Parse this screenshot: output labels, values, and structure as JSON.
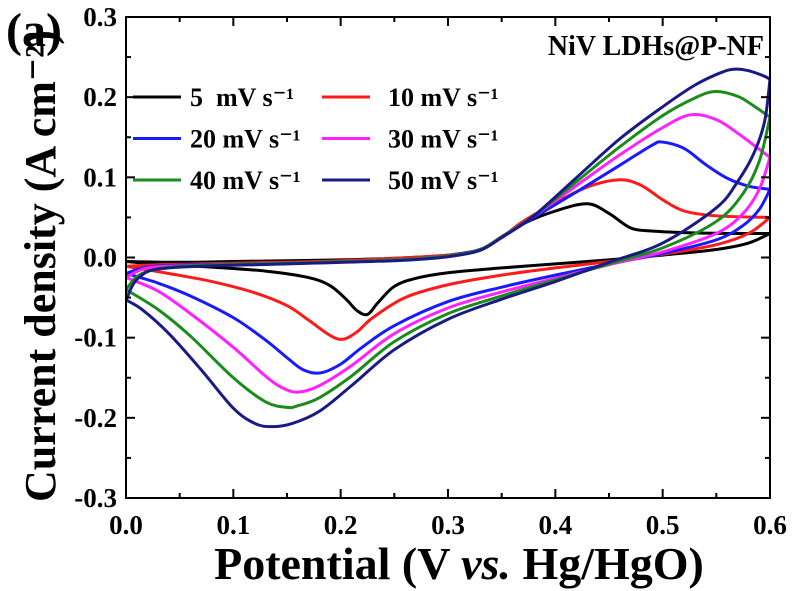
{
  "chart_data": {
    "type": "line",
    "panel_label": "(a)",
    "annotation": "NiV LDHs@P-NF",
    "xlabel": "Potential (V vs. Hg/HgO)",
    "ylabel": "Current density (A cm⁻²)",
    "xlim": [
      0,
      0.6
    ],
    "ylim": [
      -0.3,
      0.3
    ],
    "xtick_labels": [
      "0.0",
      "0.1",
      "0.2",
      "0.3",
      "0.4",
      "0.5",
      "0.6"
    ],
    "ytick_labels": [
      "-0.3",
      "-0.2",
      "-0.1",
      "0.0",
      "0.1",
      "0.2",
      "0.3"
    ],
    "grid": false,
    "legend_position": "top-left",
    "series": [
      {
        "name": "5  mV s⁻¹",
        "color": "#000000",
        "x": [
          0.0,
          0.05,
          0.1,
          0.15,
          0.2,
          0.25,
          0.3,
          0.33,
          0.35,
          0.37,
          0.4,
          0.43,
          0.45,
          0.47,
          0.49,
          0.52,
          0.56,
          0.6,
          0.58,
          0.55,
          0.5,
          0.45,
          0.4,
          0.35,
          0.3,
          0.27,
          0.25,
          0.235,
          0.225,
          0.215,
          0.205,
          0.19,
          0.17,
          0.13,
          0.08,
          0.03,
          0.0
        ],
        "y": [
          -0.005,
          -0.006,
          -0.005,
          -0.004,
          -0.003,
          -0.001,
          0.003,
          0.01,
          0.025,
          0.042,
          0.058,
          0.067,
          0.055,
          0.037,
          0.033,
          0.031,
          0.03,
          0.03,
          0.018,
          0.01,
          0.003,
          -0.003,
          -0.008,
          -0.013,
          -0.019,
          -0.026,
          -0.036,
          -0.056,
          -0.071,
          -0.066,
          -0.052,
          -0.035,
          -0.025,
          -0.017,
          -0.012,
          -0.008,
          -0.005
        ]
      },
      {
        "name": "10 mV s⁻¹",
        "color": "#ff1a1a",
        "x": [
          0.0,
          0.03,
          0.1,
          0.2,
          0.3,
          0.33,
          0.35,
          0.37,
          0.4,
          0.43,
          0.46,
          0.48,
          0.5,
          0.52,
          0.55,
          0.6,
          0.58,
          0.55,
          0.5,
          0.45,
          0.4,
          0.35,
          0.3,
          0.26,
          0.23,
          0.215,
          0.202,
          0.19,
          0.17,
          0.15,
          0.12,
          0.08,
          0.04,
          0.0
        ],
        "y": [
          -0.011,
          -0.009,
          -0.007,
          -0.004,
          0.003,
          0.01,
          0.025,
          0.045,
          0.068,
          0.088,
          0.097,
          0.09,
          0.072,
          0.058,
          0.052,
          0.05,
          0.03,
          0.016,
          0.004,
          -0.005,
          -0.013,
          -0.022,
          -0.034,
          -0.05,
          -0.075,
          -0.093,
          -0.102,
          -0.097,
          -0.078,
          -0.06,
          -0.044,
          -0.03,
          -0.02,
          -0.011
        ]
      },
      {
        "name": "20 mV s⁻¹",
        "color": "#1a1aff",
        "x": [
          0.0,
          0.02,
          0.06,
          0.15,
          0.25,
          0.3,
          0.33,
          0.35,
          0.38,
          0.42,
          0.46,
          0.49,
          0.5,
          0.52,
          0.54,
          0.56,
          0.58,
          0.6,
          0.59,
          0.575,
          0.55,
          0.5,
          0.45,
          0.4,
          0.35,
          0.3,
          0.25,
          0.22,
          0.2,
          0.181,
          0.165,
          0.15,
          0.13,
          0.1,
          0.06,
          0.03,
          0.0
        ],
        "y": [
          -0.02,
          -0.012,
          -0.009,
          -0.007,
          -0.003,
          0.002,
          0.01,
          0.025,
          0.05,
          0.082,
          0.115,
          0.14,
          0.144,
          0.136,
          0.116,
          0.099,
          0.089,
          0.085,
          0.06,
          0.04,
          0.022,
          0.005,
          -0.008,
          -0.022,
          -0.037,
          -0.055,
          -0.085,
          -0.112,
          -0.133,
          -0.144,
          -0.14,
          -0.125,
          -0.103,
          -0.075,
          -0.048,
          -0.032,
          -0.02
        ]
      },
      {
        "name": "30 mV s⁻¹",
        "color": "#ff22ff",
        "x": [
          0.0,
          0.02,
          0.06,
          0.15,
          0.25,
          0.3,
          0.33,
          0.35,
          0.38,
          0.42,
          0.46,
          0.5,
          0.526,
          0.55,
          0.57,
          0.59,
          0.6,
          0.59,
          0.575,
          0.55,
          0.5,
          0.45,
          0.4,
          0.35,
          0.3,
          0.25,
          0.21,
          0.18,
          0.16,
          0.145,
          0.13,
          0.1,
          0.06,
          0.03,
          0.0
        ],
        "y": [
          -0.025,
          -0.013,
          -0.01,
          -0.007,
          -0.003,
          0.002,
          0.01,
          0.026,
          0.052,
          0.09,
          0.128,
          0.162,
          0.178,
          0.172,
          0.155,
          0.135,
          0.125,
          0.085,
          0.055,
          0.03,
          0.007,
          -0.009,
          -0.026,
          -0.043,
          -0.063,
          -0.095,
          -0.135,
          -0.16,
          -0.168,
          -0.162,
          -0.148,
          -0.112,
          -0.07,
          -0.042,
          -0.025
        ]
      },
      {
        "name": "40 mV s⁻¹",
        "color": "#1a8c1a",
        "x": [
          0.0,
          0.015,
          0.05,
          0.15,
          0.25,
          0.3,
          0.33,
          0.35,
          0.38,
          0.42,
          0.46,
          0.5,
          0.53,
          0.549,
          0.57,
          0.585,
          0.6,
          0.59,
          0.575,
          0.55,
          0.5,
          0.45,
          0.4,
          0.35,
          0.3,
          0.25,
          0.21,
          0.18,
          0.16,
          0.15,
          0.13,
          0.1,
          0.06,
          0.03,
          0.0
        ],
        "y": [
          -0.04,
          -0.02,
          -0.011,
          -0.007,
          -0.003,
          0.002,
          0.01,
          0.026,
          0.052,
          0.095,
          0.138,
          0.177,
          0.199,
          0.207,
          0.201,
          0.189,
          0.175,
          0.12,
          0.08,
          0.045,
          0.012,
          -0.008,
          -0.028,
          -0.048,
          -0.07,
          -0.105,
          -0.148,
          -0.175,
          -0.185,
          -0.187,
          -0.18,
          -0.15,
          -0.098,
          -0.065,
          -0.04
        ]
      },
      {
        "name": "50 mV s⁻¹",
        "color": "#1a1a85",
        "x": [
          0.0,
          0.012,
          0.04,
          0.15,
          0.25,
          0.3,
          0.33,
          0.35,
          0.38,
          0.42,
          0.46,
          0.5,
          0.53,
          0.555,
          0.568,
          0.58,
          0.595,
          0.6,
          0.595,
          0.585,
          0.57,
          0.55,
          0.5,
          0.45,
          0.4,
          0.35,
          0.3,
          0.25,
          0.21,
          0.18,
          0.155,
          0.136,
          0.12,
          0.1,
          0.07,
          0.04,
          0.015,
          0.0
        ],
        "y": [
          -0.053,
          -0.025,
          -0.013,
          -0.008,
          -0.004,
          0.001,
          0.009,
          0.025,
          0.052,
          0.1,
          0.148,
          0.188,
          0.215,
          0.231,
          0.235,
          0.233,
          0.226,
          0.222,
          0.17,
          0.13,
          0.095,
          0.062,
          0.018,
          -0.006,
          -0.03,
          -0.052,
          -0.077,
          -0.115,
          -0.16,
          -0.192,
          -0.207,
          -0.211,
          -0.207,
          -0.188,
          -0.14,
          -0.095,
          -0.065,
          -0.053
        ]
      }
    ]
  }
}
